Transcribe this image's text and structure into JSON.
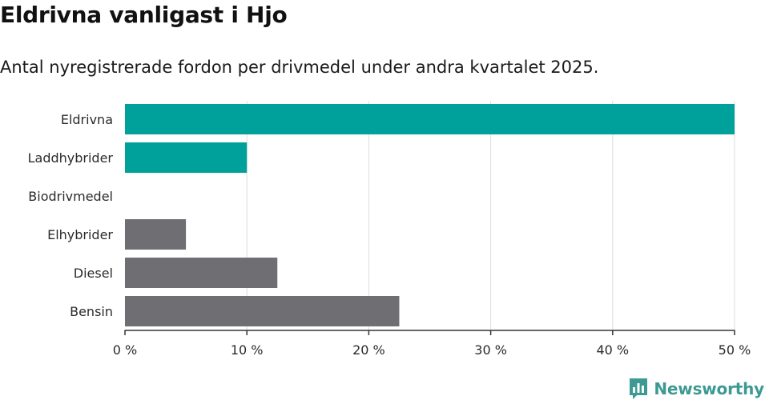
{
  "chart_data": {
    "type": "bar",
    "orientation": "horizontal",
    "title": "Eldrivna vanligast i Hjo",
    "subtitle": "Antal nyregistrerade fordon per drivmedel under andra kvartalet 2025.",
    "categories": [
      "Eldrivna",
      "Laddhybrider",
      "Biodrivmedel",
      "Elhybrider",
      "Diesel",
      "Bensin"
    ],
    "values": [
      50,
      10,
      0,
      5,
      12.5,
      22.5
    ],
    "bar_colors": [
      "#00a19a",
      "#00a19a",
      "#00a19a",
      "#6f6e73",
      "#6f6e73",
      "#6f6e73"
    ],
    "xlim": [
      0,
      50
    ],
    "xticks": [
      0,
      10,
      20,
      30,
      40,
      50
    ],
    "xtick_labels": [
      "0 %",
      "10 %",
      "20 %",
      "30 %",
      "40 %",
      "50 %"
    ],
    "grid": true
  },
  "brand": {
    "name": "Newsworthy",
    "color": "#3d9a93"
  }
}
